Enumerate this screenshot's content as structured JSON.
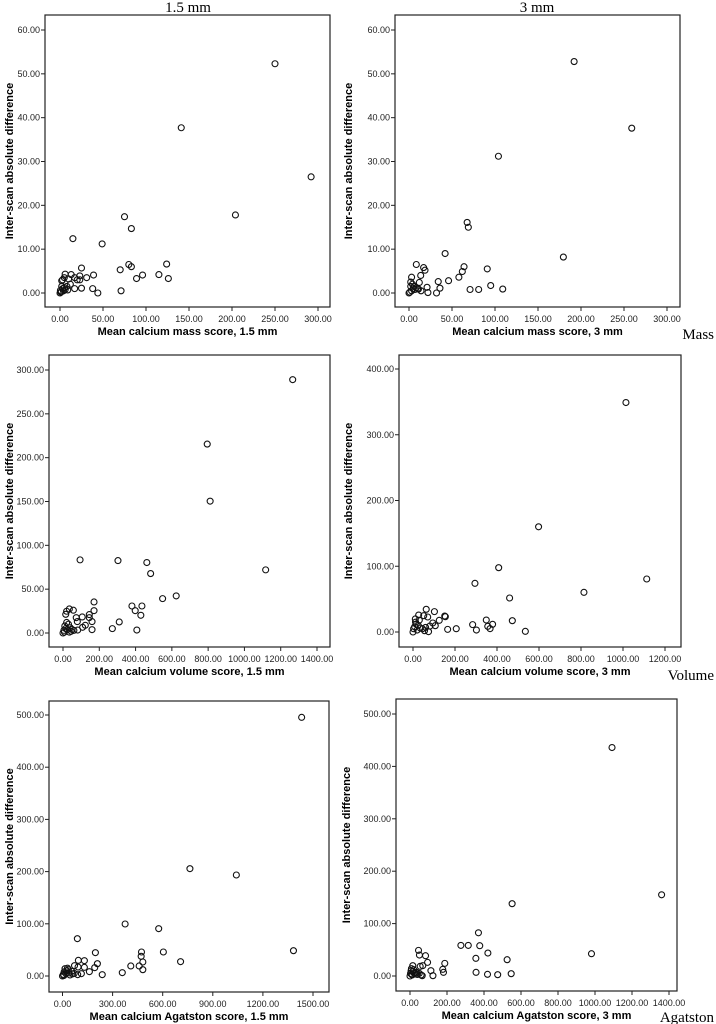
{
  "column_titles": [
    "1.5 mm",
    "3 mm"
  ],
  "row_labels": [
    "Mass",
    "Volume",
    "Agatston"
  ],
  "chart_data": [
    {
      "type": "scatter",
      "title": "",
      "xlabel": "Mean calcium mass score, 1.5 mm",
      "ylabel": "Inter-scan absolute difference",
      "xlim": [
        0,
        300
      ],
      "ylim": [
        0,
        60
      ],
      "xticks": [
        0,
        50,
        100,
        150,
        200,
        250,
        300
      ],
      "yticks": [
        0,
        10,
        20,
        30,
        40,
        50,
        60
      ],
      "grid": false,
      "points": [
        [
          250,
          52.3
        ],
        [
          141,
          37.7
        ],
        [
          292,
          26.5
        ],
        [
          204,
          17.8
        ],
        [
          75,
          17.4
        ],
        [
          83,
          14.7
        ],
        [
          15,
          12.4
        ],
        [
          49,
          11.2
        ],
        [
          25,
          5.7
        ],
        [
          80,
          6.5
        ],
        [
          83,
          6.0
        ],
        [
          124,
          6.6
        ],
        [
          70,
          5.3
        ],
        [
          39,
          4.1
        ],
        [
          96,
          4.1
        ],
        [
          115,
          4.2
        ],
        [
          89,
          3.3
        ],
        [
          126,
          3.3
        ],
        [
          31,
          3.5
        ],
        [
          23,
          3.0
        ],
        [
          23,
          3.9
        ],
        [
          13,
          4.2
        ],
        [
          6,
          4.3
        ],
        [
          3,
          3.0
        ],
        [
          5,
          3.5
        ],
        [
          17,
          3.5
        ],
        [
          20,
          3.0
        ],
        [
          10,
          3.2
        ],
        [
          12,
          2.0
        ],
        [
          8,
          1.5
        ],
        [
          25,
          1.1
        ],
        [
          17,
          1.0
        ],
        [
          38,
          1.0
        ],
        [
          44,
          0.0
        ],
        [
          71,
          0.5
        ],
        [
          2,
          2.8
        ],
        [
          3,
          1.0
        ],
        [
          4,
          0.5
        ],
        [
          1,
          0.2
        ],
        [
          0,
          0
        ],
        [
          6,
          0.8
        ],
        [
          9,
          0.7
        ],
        [
          2,
          1.5
        ],
        [
          5,
          1.2
        ],
        [
          0.5,
          0.6
        ],
        [
          1.5,
          0.3
        ]
      ]
    },
    {
      "type": "scatter",
      "title": "",
      "xlabel": "Mean calcium mass score, 3 mm",
      "ylabel": "Inter-scan absolute difference",
      "xlim": [
        0,
        300
      ],
      "ylim": [
        0,
        60
      ],
      "xticks": [
        0,
        50,
        100,
        150,
        200,
        250,
        300
      ],
      "yticks": [
        0,
        10,
        20,
        30,
        40,
        50,
        60
      ],
      "grid": false,
      "points": [
        [
          192,
          52.8
        ],
        [
          259,
          37.6
        ],
        [
          104,
          31.2
        ],
        [
          67.6,
          16.1
        ],
        [
          69,
          15.0
        ],
        [
          179.5,
          8.2
        ],
        [
          42,
          9.0
        ],
        [
          8.5,
          6.5
        ],
        [
          17,
          5.8
        ],
        [
          18.6,
          5.2
        ],
        [
          13.6,
          4.0
        ],
        [
          3,
          3.6
        ],
        [
          64,
          6.0
        ],
        [
          62,
          4.9
        ],
        [
          91,
          5.5
        ],
        [
          58,
          3.6
        ],
        [
          34,
          2.6
        ],
        [
          46,
          2.8
        ],
        [
          12,
          2.4
        ],
        [
          95,
          1.7
        ],
        [
          36,
          1.1
        ],
        [
          21,
          1.3
        ],
        [
          71,
          0.8
        ],
        [
          81,
          0.8
        ],
        [
          109,
          0.9
        ],
        [
          22,
          0.1
        ],
        [
          32,
          0
        ],
        [
          14,
          0.5
        ],
        [
          2,
          1.5
        ],
        [
          4,
          2
        ],
        [
          5,
          1
        ],
        [
          7,
          0.8
        ],
        [
          10,
          1
        ],
        [
          3,
          0.5
        ],
        [
          1,
          0.2
        ],
        [
          0,
          0
        ],
        [
          6,
          1.5
        ],
        [
          8,
          1.2
        ],
        [
          2,
          2.5
        ],
        [
          11,
          0.9
        ]
      ]
    },
    {
      "type": "scatter",
      "title": "",
      "xlabel": "Mean calcium volume score, 1.5 mm",
      "ylabel": "Inter-scan absolute difference",
      "xlim": [
        0,
        1400
      ],
      "ylim": [
        0,
        300
      ],
      "xticks": [
        0,
        200,
        400,
        600,
        800,
        1000,
        1200,
        1400
      ],
      "yticks": [
        0,
        50,
        100,
        150,
        200,
        250,
        300
      ],
      "grid": false,
      "points": [
        [
          1266,
          289
        ],
        [
          795,
          215.5
        ],
        [
          811,
          150.4
        ],
        [
          1117,
          72
        ],
        [
          94,
          83.4
        ],
        [
          303,
          82.6
        ],
        [
          462,
          80.4
        ],
        [
          483,
          67.8
        ],
        [
          624,
          42.3
        ],
        [
          549,
          39.2
        ],
        [
          171,
          35.4
        ],
        [
          380,
          30.8
        ],
        [
          435,
          30.8
        ],
        [
          398,
          25.5
        ],
        [
          429,
          20.2
        ],
        [
          310,
          12.6
        ],
        [
          272,
          5.0
        ],
        [
          407,
          3.4
        ],
        [
          160,
          13
        ],
        [
          171,
          25.5
        ],
        [
          145,
          21
        ],
        [
          145,
          17.5
        ],
        [
          106,
          18.3
        ],
        [
          160,
          3.8
        ],
        [
          73,
          17.5
        ],
        [
          79,
          13
        ],
        [
          57,
          26
        ],
        [
          35,
          27.4
        ],
        [
          20,
          24.8
        ],
        [
          15,
          21.3
        ],
        [
          123,
          8.8
        ],
        [
          108,
          6.5
        ],
        [
          81,
          3.4
        ],
        [
          0,
          0
        ],
        [
          5,
          3
        ],
        [
          10,
          8
        ],
        [
          15,
          5
        ],
        [
          25,
          4
        ],
        [
          30,
          10
        ],
        [
          40,
          6
        ],
        [
          45,
          2
        ],
        [
          20,
          12
        ],
        [
          8,
          1
        ],
        [
          50,
          4
        ],
        [
          60,
          3
        ],
        [
          35,
          1
        ]
      ]
    },
    {
      "type": "scatter",
      "title": "",
      "xlabel": "Mean calcium volume score, 3 mm",
      "ylabel": "Inter-scan absolute difference",
      "xlim": [
        0,
        1200
      ],
      "ylim": [
        0,
        400
      ],
      "xticks": [
        0,
        200,
        400,
        600,
        800,
        1000,
        1200
      ],
      "yticks": [
        0,
        100,
        200,
        300,
        400
      ],
      "grid": false,
      "points": [
        [
          1014,
          349
        ],
        [
          598,
          160
        ],
        [
          408,
          97.8
        ],
        [
          295,
          74
        ],
        [
          1113,
          80.6
        ],
        [
          814,
          60.3
        ],
        [
          460,
          51.7
        ],
        [
          473,
          17.2
        ],
        [
          349,
          18.2
        ],
        [
          379,
          11.7
        ],
        [
          356,
          8.6
        ],
        [
          367,
          5.1
        ],
        [
          284,
          11.2
        ],
        [
          302,
          3
        ],
        [
          535,
          1
        ],
        [
          206,
          5
        ],
        [
          165,
          4
        ],
        [
          151,
          24.3
        ],
        [
          154,
          23.3
        ],
        [
          102,
          31
        ],
        [
          63,
          34.5
        ],
        [
          70,
          22.8
        ],
        [
          125,
          17.7
        ],
        [
          51,
          24.8
        ],
        [
          94,
          13.7
        ],
        [
          106,
          9.6
        ],
        [
          74,
          0.5
        ],
        [
          27,
          25.8
        ],
        [
          11,
          19.8
        ],
        [
          0,
          0
        ],
        [
          3,
          5
        ],
        [
          8,
          8
        ],
        [
          15,
          12
        ],
        [
          20,
          3
        ],
        [
          25,
          10
        ],
        [
          35,
          6
        ],
        [
          45,
          5
        ],
        [
          55,
          2
        ],
        [
          12,
          15
        ],
        [
          30,
          18
        ],
        [
          60,
          7
        ],
        [
          80,
          9
        ]
      ]
    },
    {
      "type": "scatter",
      "title": "",
      "xlabel": "Mean calcium Agatston score, 1.5 mm",
      "ylabel": "Inter-scan absolute difference",
      "xlim": [
        0,
        1500
      ],
      "ylim": [
        0,
        500
      ],
      "xticks": [
        0,
        300,
        600,
        900,
        1200,
        1500
      ],
      "yticks": [
        0,
        100,
        200,
        300,
        400,
        500
      ],
      "grid": false,
      "points": [
        [
          1432,
          495.5
        ],
        [
          763,
          205.6
        ],
        [
          1041,
          193.5
        ],
        [
          1383,
          48.5
        ],
        [
          375,
          99.6
        ],
        [
          576,
          90.7
        ],
        [
          89,
          71.5
        ],
        [
          604,
          46
        ],
        [
          473,
          46
        ],
        [
          471,
          37.7
        ],
        [
          707,
          27.5
        ],
        [
          481,
          26.8
        ],
        [
          459,
          19.2
        ],
        [
          409,
          19.2
        ],
        [
          481,
          12.1
        ],
        [
          358,
          6.4
        ],
        [
          238,
          2.6
        ],
        [
          197,
          44.7
        ],
        [
          209,
          23.6
        ],
        [
          131,
          29.4
        ],
        [
          95,
          30
        ],
        [
          193,
          16
        ],
        [
          161,
          8.3
        ],
        [
          131,
          16.6
        ],
        [
          93,
          17.2
        ],
        [
          72,
          19.8
        ],
        [
          113,
          4.5
        ],
        [
          91,
          2.6
        ],
        [
          0,
          0
        ],
        [
          5,
          3
        ],
        [
          10,
          8
        ],
        [
          15,
          14
        ],
        [
          20,
          5
        ],
        [
          25,
          10
        ],
        [
          30,
          15
        ],
        [
          40,
          6
        ],
        [
          45,
          2
        ],
        [
          55,
          9
        ],
        [
          60,
          4
        ],
        [
          35,
          12
        ],
        [
          70,
          5
        ],
        [
          8,
          1
        ]
      ]
    },
    {
      "type": "scatter",
      "title": "",
      "xlabel": "Mean calcium Agatston score, 3 mm",
      "ylabel": "Inter-scan absolute difference",
      "xlim": [
        0,
        1400
      ],
      "ylim": [
        0,
        500
      ],
      "xticks": [
        0,
        200,
        400,
        600,
        800,
        1000,
        1200,
        1400
      ],
      "yticks": [
        0,
        100,
        200,
        300,
        400,
        500
      ],
      "grid": false,
      "points": [
        [
          1092,
          436
        ],
        [
          1360,
          155
        ],
        [
          552,
          138
        ],
        [
          370,
          82.5
        ],
        [
          275,
          58.4
        ],
        [
          315,
          58.4
        ],
        [
          377,
          57.8
        ],
        [
          421,
          43.8
        ],
        [
          981,
          42.5
        ],
        [
          525,
          31.1
        ],
        [
          356,
          33.7
        ],
        [
          357,
          7
        ],
        [
          419,
          3.2
        ],
        [
          474,
          2.5
        ],
        [
          547,
          4.4
        ],
        [
          188,
          24.1
        ],
        [
          177,
          12.7
        ],
        [
          181,
          7
        ],
        [
          113,
          10.2
        ],
        [
          124,
          0.6
        ],
        [
          95,
          26
        ],
        [
          84,
          38.7
        ],
        [
          46,
          48.9
        ],
        [
          51,
          40
        ],
        [
          69,
          19.7
        ],
        [
          55,
          18.4
        ],
        [
          66,
          0.6
        ],
        [
          15,
          19.7
        ],
        [
          0,
          0
        ],
        [
          3,
          5
        ],
        [
          6,
          10
        ],
        [
          10,
          3
        ],
        [
          15,
          8
        ],
        [
          20,
          12
        ],
        [
          25,
          6
        ],
        [
          30,
          4
        ],
        [
          35,
          7
        ],
        [
          40,
          3
        ],
        [
          50,
          5
        ],
        [
          60,
          2
        ],
        [
          8,
          14
        ],
        [
          12,
          2
        ]
      ]
    }
  ]
}
